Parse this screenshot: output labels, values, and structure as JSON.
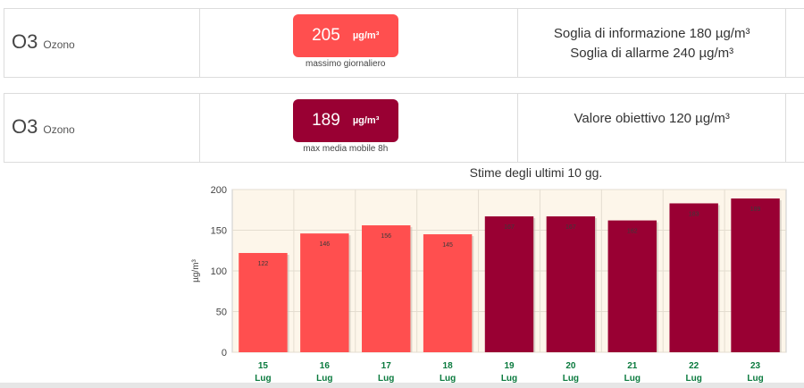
{
  "rows": [
    {
      "pollutant_symbol": "O3",
      "pollutant_name": "Ozono",
      "value": "205",
      "unit": "µg/m³",
      "caption": "massimo giornaliero",
      "badge_color": "#ff4f4f",
      "thresholds": [
        "Soglia di informazione 180 µg/m³",
        "Soglia di allarme 240 µg/m³"
      ]
    },
    {
      "pollutant_symbol": "O3",
      "pollutant_name": "Ozono",
      "value": "189",
      "unit": "µg/m³",
      "caption": "max media mobile 8h",
      "badge_color": "#990033",
      "thresholds": [
        "Valore obiettivo 120 µg/m³"
      ]
    }
  ],
  "chart_data": {
    "type": "bar",
    "title": "Stime degli ultimi 10 gg.",
    "ylabel": "µg/m³",
    "ylim": [
      0,
      200
    ],
    "yticks": [
      0,
      50,
      100,
      150,
      200
    ],
    "grid": true,
    "categories": [
      {
        "day": "15",
        "month": "Lug"
      },
      {
        "day": "16",
        "month": "Lug"
      },
      {
        "day": "17",
        "month": "Lug"
      },
      {
        "day": "18",
        "month": "Lug"
      },
      {
        "day": "19",
        "month": "Lug"
      },
      {
        "day": "20",
        "month": "Lug"
      },
      {
        "day": "21",
        "month": "Lug"
      },
      {
        "day": "22",
        "month": "Lug"
      },
      {
        "day": "23",
        "month": "Lug"
      }
    ],
    "values": [
      122,
      146,
      156,
      145,
      167,
      167,
      162,
      183,
      189
    ],
    "colors": [
      "#ff4f4f",
      "#ff4f4f",
      "#ff4f4f",
      "#ff4f4f",
      "#990033",
      "#990033",
      "#990033",
      "#990033",
      "#990033"
    ],
    "plot_background": "#fdf6ea",
    "tick_label_color": "#0a7a3e"
  }
}
